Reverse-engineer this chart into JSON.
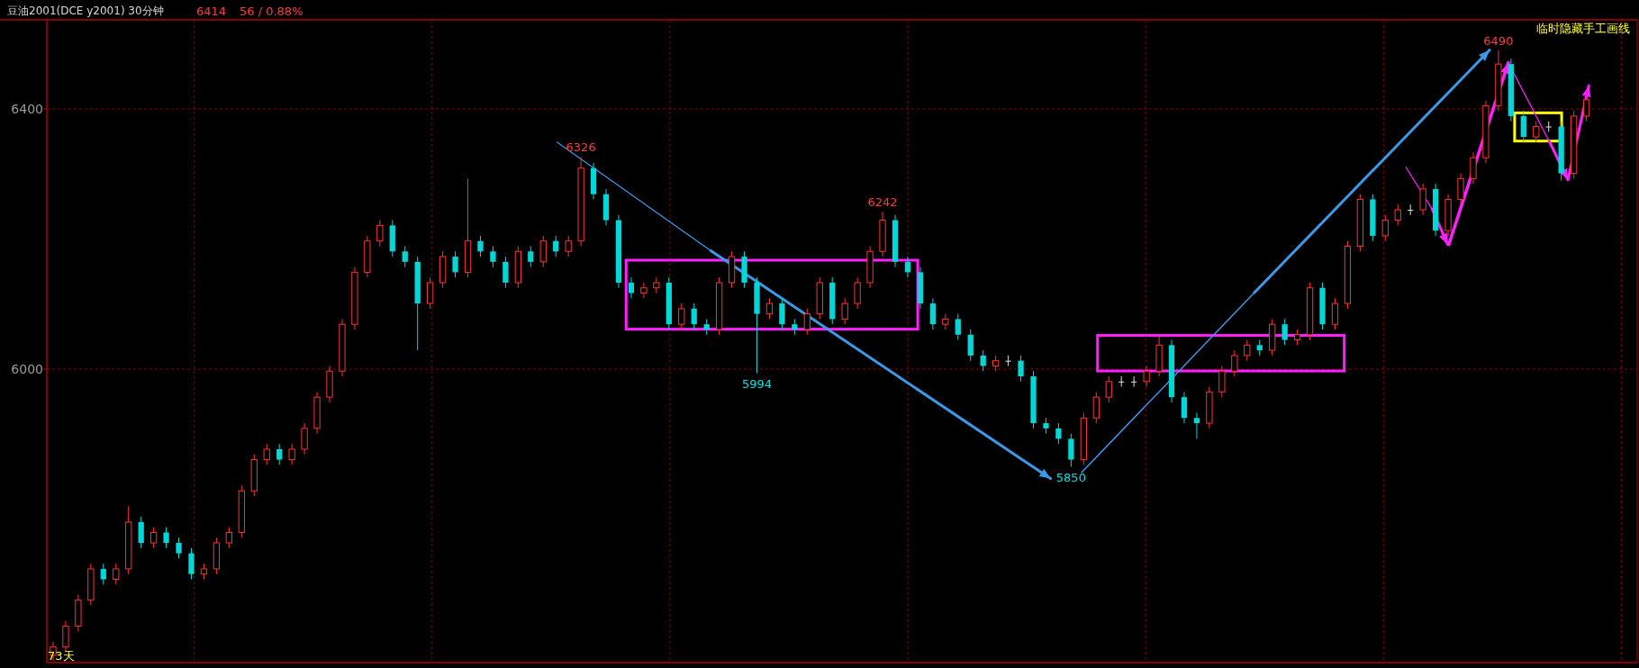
{
  "chart_data": {
    "type": "candlestick",
    "title": "豆油2001(DCE y2001) 30分钟",
    "categories": [
      null,
      null,
      null,
      null,
      null,
      null,
      null,
      null,
      null,
      null,
      null,
      null,
      null,
      null,
      null,
      null,
      null,
      null,
      null,
      null,
      null,
      null,
      null,
      null,
      null,
      null,
      null,
      null,
      null,
      null,
      null,
      null,
      null,
      null,
      null,
      null,
      null,
      null,
      null,
      null,
      null,
      null,
      null,
      null,
      null,
      null,
      null,
      null,
      null,
      null,
      null,
      null,
      null,
      null,
      null,
      null,
      null,
      null,
      null,
      null,
      null,
      null,
      null,
      null,
      null,
      null,
      null,
      null,
      null,
      null,
      null,
      null,
      null,
      null,
      null,
      null,
      null,
      null,
      null,
      null,
      null,
      null,
      null,
      null,
      null,
      null,
      null,
      null,
      null,
      null,
      null,
      null,
      null,
      null,
      null,
      null,
      null,
      null,
      null,
      null,
      null,
      null,
      null,
      null,
      null,
      null,
      null,
      null,
      null,
      null,
      null,
      null,
      null,
      null,
      null,
      null,
      null,
      null,
      null,
      null,
      null,
      null,
      null
    ],
    "ohlc": [
      [
        5560,
        5581,
        5552,
        5573
      ],
      [
        5573,
        5613,
        5565,
        5605
      ],
      [
        5605,
        5653,
        5597,
        5645
      ],
      [
        5645,
        5701,
        5637,
        5693
      ],
      [
        5693,
        5701,
        5669,
        5677
      ],
      [
        5677,
        5701,
        5669,
        5693
      ],
      [
        5693,
        5790,
        5685,
        5765
      ],
      [
        5765,
        5773,
        5725,
        5733
      ],
      [
        5733,
        5757,
        5725,
        5749
      ],
      [
        5749,
        5757,
        5725,
        5733
      ],
      [
        5733,
        5741,
        5709,
        5717
      ],
      [
        5717,
        5725,
        5677,
        5685
      ],
      [
        5685,
        5701,
        5677,
        5693
      ],
      [
        5693,
        5741,
        5685,
        5733
      ],
      [
        5733,
        5757,
        5725,
        5749
      ],
      [
        5749,
        5821,
        5741,
        5813
      ],
      [
        5813,
        5869,
        5805,
        5861
      ],
      [
        5861,
        5885,
        5853,
        5877
      ],
      [
        5877,
        5885,
        5853,
        5861
      ],
      [
        5861,
        5885,
        5853,
        5877
      ],
      [
        5877,
        5917,
        5869,
        5909
      ],
      [
        5909,
        5965,
        5901,
        5957
      ],
      [
        5957,
        6005,
        5949,
        5997
      ],
      [
        5997,
        6077,
        5989,
        6069
      ],
      [
        6069,
        6157,
        6061,
        6149
      ],
      [
        6149,
        6205,
        6141,
        6197
      ],
      [
        6197,
        6229,
        6189,
        6221
      ],
      [
        6221,
        6229,
        6173,
        6181
      ],
      [
        6181,
        6189,
        6157,
        6165
      ],
      [
        6165,
        6173,
        6029,
        6101
      ],
      [
        6101,
        6141,
        6093,
        6133
      ],
      [
        6133,
        6181,
        6125,
        6173
      ],
      [
        6173,
        6181,
        6141,
        6149
      ],
      [
        6149,
        6293,
        6141,
        6197
      ],
      [
        6197,
        6205,
        6173,
        6181
      ],
      [
        6181,
        6189,
        6157,
        6165
      ],
      [
        6165,
        6173,
        6125,
        6133
      ],
      [
        6133,
        6189,
        6125,
        6181
      ],
      [
        6181,
        6189,
        6157,
        6165
      ],
      [
        6165,
        6205,
        6157,
        6197
      ],
      [
        6197,
        6205,
        6173,
        6181
      ],
      [
        6181,
        6205,
        6173,
        6197
      ],
      [
        6197,
        6326,
        6189,
        6309
      ],
      [
        6309,
        6317,
        6261,
        6269
      ],
      [
        6269,
        6277,
        6221,
        6229
      ],
      [
        6229,
        6237,
        6125,
        6133
      ],
      [
        6133,
        6141,
        6109,
        6117
      ],
      [
        6117,
        6133,
        6109,
        6125
      ],
      [
        6125,
        6141,
        6117,
        6133
      ],
      [
        6133,
        6141,
        6061,
        6069
      ],
      [
        6069,
        6101,
        6061,
        6093
      ],
      [
        6093,
        6101,
        6061,
        6069
      ],
      [
        6069,
        6077,
        6053,
        6061
      ],
      [
        6061,
        6141,
        6053,
        6133
      ],
      [
        6133,
        6181,
        6125,
        6173
      ],
      [
        6173,
        6181,
        6125,
        6133
      ],
      [
        6133,
        6141,
        5994,
        6085
      ],
      [
        6085,
        6109,
        6077,
        6101
      ],
      [
        6101,
        6109,
        6061,
        6069
      ],
      [
        6069,
        6077,
        6053,
        6061
      ],
      [
        6061,
        6093,
        6053,
        6085
      ],
      [
        6085,
        6141,
        6077,
        6133
      ],
      [
        6133,
        6141,
        6069,
        6077
      ],
      [
        6077,
        6109,
        6069,
        6101
      ],
      [
        6101,
        6141,
        6093,
        6133
      ],
      [
        6133,
        6189,
        6125,
        6181
      ],
      [
        6181,
        6242,
        6173,
        6229
      ],
      [
        6229,
        6237,
        6157,
        6165
      ],
      [
        6165,
        6173,
        6141,
        6149
      ],
      [
        6149,
        6157,
        6093,
        6101
      ],
      [
        6101,
        6109,
        6061,
        6069
      ],
      [
        6069,
        6085,
        6061,
        6077
      ],
      [
        6077,
        6085,
        6045,
        6053
      ],
      [
        6053,
        6061,
        6013,
        6021
      ],
      [
        6021,
        6029,
        5997,
        6005
      ],
      [
        6005,
        6021,
        5997,
        6013
      ],
      [
        6013,
        6021,
        6005,
        6013
      ],
      [
        6013,
        6021,
        5981,
        5989
      ],
      [
        5989,
        5997,
        5909,
        5917
      ],
      [
        5917,
        5925,
        5901,
        5909
      ],
      [
        5909,
        5917,
        5885,
        5893
      ],
      [
        5893,
        5901,
        5850,
        5861
      ],
      [
        5861,
        5933,
        5853,
        5925
      ],
      [
        5925,
        5965,
        5917,
        5957
      ],
      [
        5957,
        5989,
        5949,
        5981
      ],
      [
        5981,
        5989,
        5973,
        5981
      ],
      [
        5981,
        5989,
        5973,
        5981
      ],
      [
        5981,
        6005,
        5973,
        5997
      ],
      [
        5997,
        6050,
        5989,
        6037
      ],
      [
        6037,
        6045,
        5949,
        5957
      ],
      [
        5957,
        5965,
        5917,
        5925
      ],
      [
        5925,
        5933,
        5893,
        5917
      ],
      [
        5917,
        5973,
        5909,
        5965
      ],
      [
        5965,
        6005,
        5957,
        5997
      ],
      [
        5997,
        6029,
        5989,
        6021
      ],
      [
        6021,
        6045,
        6013,
        6037
      ],
      [
        6037,
        6045,
        6021,
        6029
      ],
      [
        6029,
        6077,
        6021,
        6069
      ],
      [
        6069,
        6077,
        6037,
        6045
      ],
      [
        6045,
        6061,
        6037,
        6053
      ],
      [
        6053,
        6133,
        6045,
        6125
      ],
      [
        6125,
        6133,
        6061,
        6069
      ],
      [
        6069,
        6109,
        6061,
        6101
      ],
      [
        6101,
        6197,
        6093,
        6189
      ],
      [
        6189,
        6269,
        6181,
        6261
      ],
      [
        6261,
        6269,
        6197,
        6205
      ],
      [
        6205,
        6237,
        6197,
        6229
      ],
      [
        6229,
        6253,
        6221,
        6245
      ],
      [
        6245,
        6253,
        6237,
        6245
      ],
      [
        6245,
        6285,
        6237,
        6277
      ],
      [
        6277,
        6285,
        6205,
        6213
      ],
      [
        6213,
        6269,
        6205,
        6261
      ],
      [
        6261,
        6301,
        6253,
        6293
      ],
      [
        6293,
        6333,
        6285,
        6325
      ],
      [
        6325,
        6413,
        6317,
        6405
      ],
      [
        6405,
        6490,
        6397,
        6469
      ],
      [
        6469,
        6477,
        6381,
        6389
      ],
      [
        6389,
        6397,
        6349,
        6357
      ],
      [
        6357,
        6381,
        6349,
        6373
      ],
      [
        6373,
        6381,
        6365,
        6373
      ],
      [
        6373,
        6381,
        6290,
        6301
      ],
      [
        6301,
        6397,
        6293,
        6389
      ],
      [
        6389,
        6430,
        6381,
        6414
      ]
    ],
    "ylim": [
      5549,
      6537
    ],
    "yticks": [
      6000,
      6400
    ],
    "grid": true,
    "tick_labels": "y",
    "annotations": [
      "6414",
      "56 / 0.88%",
      "临时隐藏手工画线",
      "73天",
      {
        "text": "6326",
        "y": 6326
      },
      {
        "text": "5994",
        "y": 5994
      },
      {
        "text": "6242",
        "y": 6242
      },
      {
        "text": "5850",
        "y": 5850
      },
      {
        "text": "6490",
        "y": 6490
      }
    ]
  }
}
